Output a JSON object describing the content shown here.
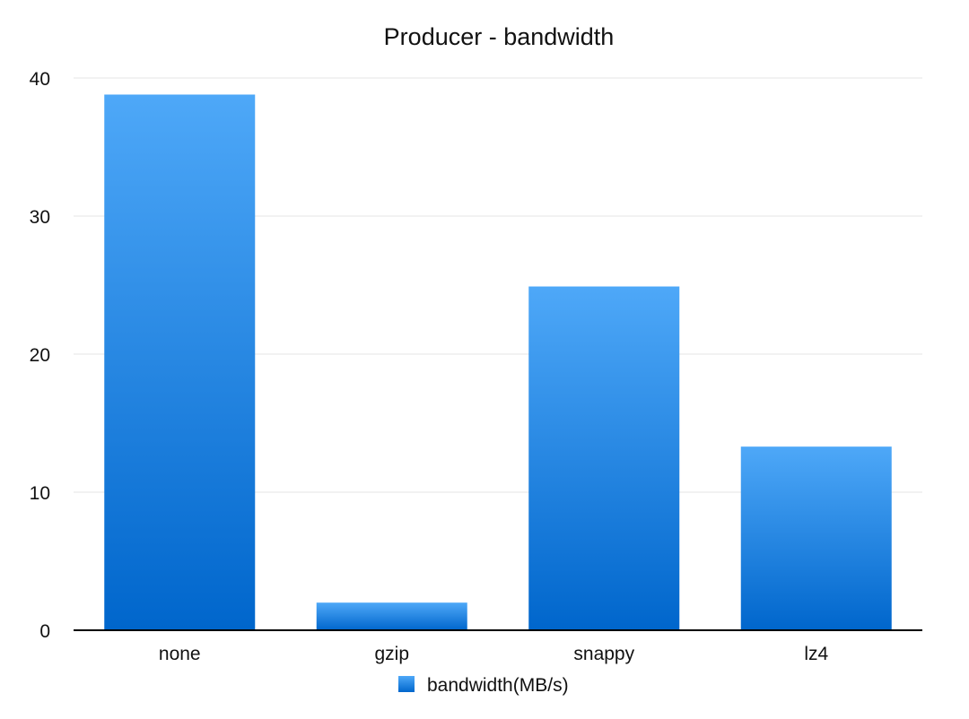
{
  "chart_data": {
    "type": "bar",
    "title": "Producer - bandwidth",
    "categories": [
      "none",
      "gzip",
      "snappy",
      "lz4"
    ],
    "series": [
      {
        "name": "bandwidth(MB/s)",
        "values": [
          38.8,
          2.0,
          24.9,
          13.3
        ],
        "color": "#1a7fe0"
      }
    ],
    "xlabel": "",
    "ylabel": "",
    "ylim": [
      0,
      40
    ],
    "yticks": [
      0,
      10,
      20,
      30,
      40
    ],
    "grid": true,
    "legend_position": "bottom-center",
    "colors": {
      "bar_top": "#4ea8f8",
      "bar_bottom": "#0066cc",
      "grid": "#e4e4e4",
      "axis": "#000000",
      "text": "#111111"
    }
  }
}
